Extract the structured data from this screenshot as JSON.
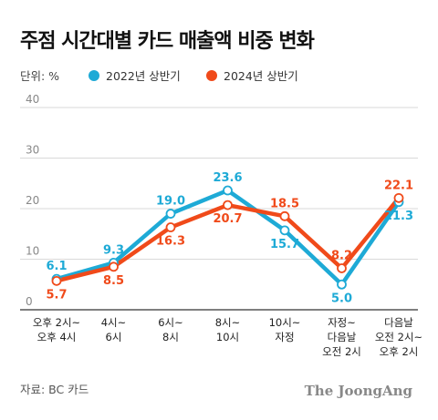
{
  "title": "주점 시간대별 카드 매출액 비중 변화",
  "unit_label": "단위: %",
  "source": "자료: BC 카드",
  "logo_text": "The JoongAng",
  "colors": {
    "series_2022": "#1eaad6",
    "series_2024": "#f04a1a",
    "grid": "#cccccc",
    "axis": "#333333"
  },
  "chart_data": {
    "type": "line",
    "title": "주점 시간대별 카드 매출액 비중 변화",
    "ylabel": "단위: %",
    "ylim": [
      0,
      40
    ],
    "yticks": [
      "0",
      "10",
      "20",
      "30",
      "40"
    ],
    "grid": true,
    "legend_position": "top",
    "categories": [
      [
        "오후 2시~",
        "오후 4시"
      ],
      [
        "4시~",
        "6시"
      ],
      [
        "6시~",
        "8시"
      ],
      [
        "8시~",
        "10시"
      ],
      [
        "10시~",
        "자정"
      ],
      [
        "자정~",
        "다음날",
        "오전 2시"
      ],
      [
        "다음날",
        "오전 2시~",
        "오후 2시"
      ]
    ],
    "series": [
      {
        "name": "2022년 상반기",
        "values": [
          6.1,
          9.3,
          19.0,
          23.6,
          15.7,
          5.0,
          21.3
        ],
        "labels": [
          "6.1",
          "9.3",
          "19.0",
          "23.6",
          "15.7",
          "5.0",
          "21.3"
        ]
      },
      {
        "name": "2024년 상반기",
        "values": [
          5.7,
          8.5,
          16.3,
          20.7,
          18.5,
          8.2,
          22.1
        ],
        "labels": [
          "5.7",
          "8.5",
          "16.3",
          "20.7",
          "18.5",
          "8.2",
          "22.1"
        ]
      }
    ]
  }
}
